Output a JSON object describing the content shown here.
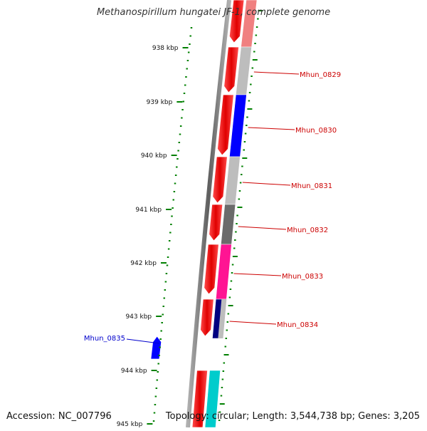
{
  "map": {
    "title": "Methanospirillum hungatei JF-1, complete genome",
    "accession": "Accession: NC_007796",
    "summary": "Topology: circular; Length: 3,544,738 bp; Genes: 3,205"
  },
  "ticks": [
    "938 kbp",
    "939 kbp",
    "940 kbp",
    "941 kbp",
    "942 kbp",
    "943 kbp",
    "944 kbp",
    "945 kbp"
  ],
  "genes": [
    {
      "label": "Mhun_0829",
      "color": "#cc0000"
    },
    {
      "label": "Mhun_0830",
      "color": "#cc0000"
    },
    {
      "label": "Mhun_0831",
      "color": "#cc0000"
    },
    {
      "label": "Mhun_0832",
      "color": "#cc0000"
    },
    {
      "label": "Mhun_0833",
      "color": "#cc0000"
    },
    {
      "label": "Mhun_0834",
      "color": "#cc0000"
    },
    {
      "label": "Mhun_0835",
      "color": "#0000cc"
    }
  ],
  "colors": {
    "forward_cds": "#ff0000",
    "reverse_cds": "#0000ff",
    "backbone": "#888888",
    "tick_mark": "#008000",
    "cog_grey": "#bdbdbd",
    "cog_dark_grey": "#6b6b6b",
    "cog_pink": "#ff1493",
    "cog_light_red": "#f08080",
    "cog_navy": "#000080",
    "cog_cyan": "#00cccc"
  }
}
